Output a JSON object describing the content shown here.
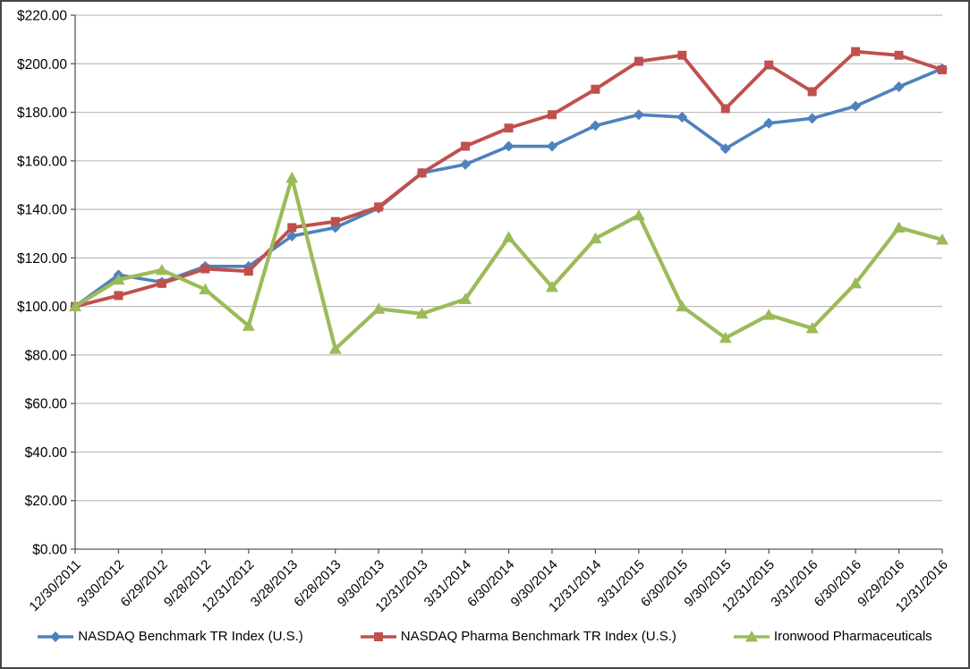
{
  "chart_data": {
    "type": "line",
    "title": "",
    "grid": "horizontal-major",
    "legend_position": "bottom",
    "axis_color": "#595959",
    "gridline_color": "#BDBDBD",
    "text_color": "#000000",
    "ylim": [
      0,
      220
    ],
    "x_tick_labels": [
      "12/30/2011",
      "3/30/2012",
      "6/29/2012",
      "9/28/2012",
      "12/31/2012",
      "3/28/2013",
      "6/28/2013",
      "9/30/2013",
      "12/31/2013",
      "3/31/2014",
      "6/30/2014",
      "9/30/2014",
      "12/31/2014",
      "3/31/2015",
      "6/30/2015",
      "9/30/2015",
      "12/31/2015",
      "3/31/2016",
      "6/30/2016",
      "9/29/2016",
      "12/31/2016"
    ],
    "y_ticks": [
      {
        "value": 0,
        "label": "$0.00"
      },
      {
        "value": 20,
        "label": "$20.00"
      },
      {
        "value": 40,
        "label": "$40.00"
      },
      {
        "value": 60,
        "label": "$60.00"
      },
      {
        "value": 80,
        "label": "$80.00"
      },
      {
        "value": 100,
        "label": "$100.00"
      },
      {
        "value": 120,
        "label": "$120.00"
      },
      {
        "value": 140,
        "label": "$140.00"
      },
      {
        "value": 160,
        "label": "$160.00"
      },
      {
        "value": 180,
        "label": "$180.00"
      },
      {
        "value": 200,
        "label": "$200.00"
      },
      {
        "value": 220,
        "label": "$220.00"
      }
    ],
    "series": [
      {
        "name": "NASDAQ Benchmark TR Index (U.S.)",
        "color": "#4F81BD",
        "marker": "diamond",
        "values": [
          100,
          113,
          110,
          116.5,
          116.5,
          129,
          132.5,
          140.5,
          155,
          158.5,
          166,
          166,
          174.5,
          179,
          178,
          165,
          175.5,
          177.5,
          182.5,
          190.5,
          198
        ]
      },
      {
        "name": "NASDAQ Pharma Benchmark TR Index (U.S.)",
        "color": "#C0504D",
        "marker": "square",
        "values": [
          100,
          104.5,
          109.5,
          115.5,
          114.5,
          132.5,
          135,
          141,
          155,
          166,
          173.5,
          179,
          189.5,
          201,
          203.5,
          181.5,
          199.5,
          188.5,
          205,
          203.5,
          197.5
        ]
      },
      {
        "name": "Ironwood Pharmaceuticals",
        "color": "#9BBB59",
        "marker": "triangle",
        "values": [
          100,
          111,
          115,
          107,
          92,
          153,
          82.5,
          99,
          97,
          103,
          128.5,
          108,
          128,
          137.5,
          100,
          87,
          96.5,
          91,
          109.5,
          132.5,
          127.5
        ]
      }
    ]
  }
}
